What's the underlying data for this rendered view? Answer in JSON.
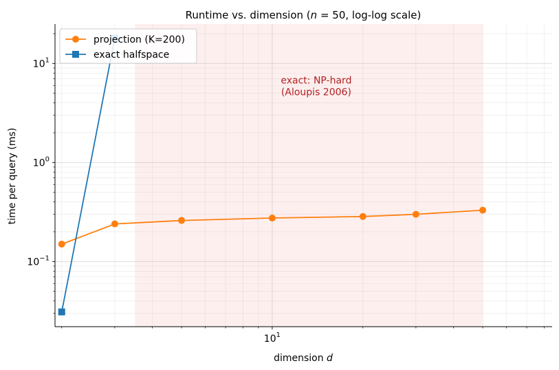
{
  "chart_data": {
    "type": "line",
    "title": "Runtime vs. dimension (n = 50, log-log scale)",
    "title_parts": {
      "pre": "Runtime vs. dimension (",
      "italic": "n",
      "post": " = 50, log-log scale)"
    },
    "xlabel": "dimension d",
    "xlabel_parts": {
      "pre": "dimension ",
      "italic": "d"
    },
    "ylabel": "time per query (ms)",
    "xscale": "log",
    "yscale": "log",
    "xlim": [
      1.9,
      85
    ],
    "ylim": [
      0.022,
      25
    ],
    "grid": true,
    "legend_position": "top-left",
    "x_ticks": [
      {
        "value": 10,
        "base": "10",
        "exp": "1"
      }
    ],
    "y_ticks": [
      {
        "value": 0.1,
        "base": "10",
        "exp": "−1"
      },
      {
        "value": 1,
        "base": "10",
        "exp": "0"
      },
      {
        "value": 10,
        "base": "10",
        "exp": "1"
      }
    ],
    "series": [
      {
        "name": "projection (K=200)",
        "color": "#ff7f0e",
        "marker": "circle",
        "x": [
          2,
          3,
          5,
          10,
          20,
          30,
          50
        ],
        "y": [
          0.15,
          0.24,
          0.26,
          0.275,
          0.285,
          0.3,
          0.33
        ]
      },
      {
        "name": "exact halfspace",
        "color": "#1f77b4",
        "marker": "square",
        "x": [
          2,
          3
        ],
        "y": [
          0.031,
          18
        ]
      }
    ],
    "shaded_region": {
      "x_from": 3.5,
      "x_to": 50,
      "color": "#fde8e8"
    },
    "annotation": {
      "lines": [
        "exact: NP-hard",
        "(Aloupis 2006)"
      ],
      "x": 14,
      "y": 6,
      "color": "#b22222"
    }
  }
}
